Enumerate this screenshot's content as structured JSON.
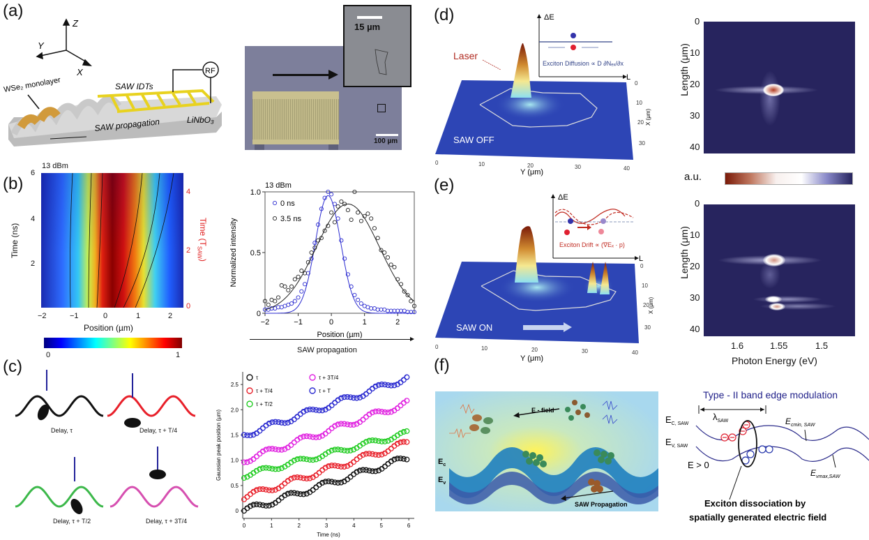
{
  "panels": {
    "a": {
      "label": "(a)",
      "axes": {
        "z": "Z",
        "y": "Y",
        "x": "X"
      },
      "monolayer": "WSe₂ monolayer",
      "idts": "SAW IDTs",
      "rf": "RF",
      "substrate": "LiNbO₃",
      "propagation": "SAW propagation",
      "micro_scale_inset": "15 µm",
      "micro_scale_main": "100 µm"
    },
    "b": {
      "label": "(b)",
      "heatmap": {
        "power": "13 dBm",
        "ylabel": "Time (ns)",
        "ylabel_right": "Time (T",
        "ylabel_right_sub": "SAW",
        "ylabel_right_end": ")",
        "xlabel": "Position (µm)",
        "xticks": [
          "−2",
          "−1",
          "0",
          "1",
          "2"
        ],
        "yticks": [
          "2",
          "4",
          "6"
        ],
        "yticks_right": [
          "0",
          "2",
          "4"
        ],
        "colorbar_min": "0",
        "colorbar_max": "1"
      },
      "profile_footer": "SAW propagation"
    },
    "c": {
      "label": "(c)",
      "delays": [
        "Delay, τ",
        "Delay, τ + T/4",
        "Delay, τ + T/2",
        "Delay, τ + 3T/4"
      ],
      "wave_colors": [
        "#111111",
        "#e8202a",
        "#3cb84a",
        "#d64fb0"
      ]
    },
    "d": {
      "label": "(d)",
      "laser": "Laser",
      "state": "SAW OFF",
      "inset_y": "ΔE",
      "inset_x": "L",
      "inset_caption": "Exciton Diffusion ∝ D ∂Nₑₓ/∂x",
      "x_axis": "Y (μm)",
      "y_axis": "X (μm)",
      "xticks": [
        "0",
        "10",
        "20",
        "30",
        "40"
      ],
      "yticks": [
        "0",
        "10",
        "20",
        "30"
      ]
    },
    "e": {
      "label": "(e)",
      "state": "SAW ON",
      "inset_y": "ΔE",
      "inset_x": "L",
      "inset_caption": "Exciton Drift ∝ (∇Eₓ · p)",
      "x_axis": "Y (μm)",
      "y_axis": "X (μm)",
      "xticks": [
        "0",
        "10",
        "20",
        "30",
        "40"
      ],
      "yticks": [
        "0",
        "10",
        "20",
        "30"
      ]
    },
    "spectra": {
      "ylabel": "Length (μm)",
      "yticks": [
        "0",
        "10",
        "20",
        "30",
        "40"
      ],
      "xlabel": "Photon Energy (eV)",
      "xticks": [
        "1.6",
        "1.55",
        "1.5"
      ],
      "colorbar_label": "a.u."
    },
    "f": {
      "label": "(f)",
      "efield": "E - field",
      "ec": "E",
      "ec_sub": "c",
      "ev": "E",
      "ev_sub": "v",
      "propagation": "SAW Propagation",
      "band_title": "Type - II band edge modulation",
      "lambda": "λ",
      "lambda_sub": "SAW",
      "ec_saw": "E",
      "ec_saw_sub": "C, SAW",
      "ev_saw": "E",
      "ev_saw_sub": "V, SAW",
      "e_pos": "E > 0",
      "ecmin": "E",
      "ecmin_sub": "cmin, SAW",
      "evmax": "E",
      "evmax_sub": "vmax,SAW",
      "caption_line1": "Exciton dissociation by",
      "caption_line2": "spatially generated  electric field"
    }
  },
  "chart_data": [
    {
      "type": "line",
      "id": "normalized-intensity",
      "title": "13 dBm",
      "xlabel": "Position (µm)",
      "ylabel": "Normalized intensity",
      "xlim": [
        -2,
        2.5
      ],
      "ylim": [
        0,
        1.0
      ],
      "xticks": [
        -2,
        -1,
        0,
        1,
        2
      ],
      "yticks": [
        0,
        0.5,
        1.0
      ],
      "ytick_labels": [
        "0",
        "0.5",
        "1.0"
      ],
      "legend_position": "top-left",
      "series": [
        {
          "name": "0 ns",
          "color": "#2a2ad0",
          "fit": {
            "center": -0.1,
            "sigma": 0.38,
            "amp": 0.97
          },
          "points_x": [
            -2,
            -1.9,
            -1.8,
            -1.7,
            -1.6,
            -1.5,
            -1.4,
            -1.3,
            -1.2,
            -1.1,
            -1.0,
            -0.9,
            -0.8,
            -0.7,
            -0.6,
            -0.5,
            -0.4,
            -0.3,
            -0.2,
            -0.1,
            0,
            0.1,
            0.2,
            0.3,
            0.4,
            0.5,
            0.6,
            0.7,
            0.8,
            0.9,
            1.0,
            1.1,
            1.2,
            1.3,
            1.4,
            1.5,
            1.6,
            1.7,
            1.8,
            1.9,
            2.0,
            2.1,
            2.2,
            2.3,
            2.4,
            2.5
          ],
          "points_y": [
            0.03,
            0.03,
            0.04,
            0.04,
            0.05,
            0.05,
            0.06,
            0.07,
            0.08,
            0.1,
            0.13,
            0.18,
            0.24,
            0.33,
            0.45,
            0.58,
            0.73,
            0.86,
            0.95,
            1.0,
            0.98,
            0.9,
            0.78,
            0.6,
            0.45,
            0.32,
            0.22,
            0.15,
            0.11,
            0.08,
            0.06,
            0.05,
            0.04,
            0.04,
            0.03,
            0.03,
            0.03,
            0.02,
            0.02,
            0.02,
            0.02,
            0.02,
            0.02,
            0.01,
            0.01,
            0.01
          ]
        },
        {
          "name": "3.5 ns",
          "color": "#222222",
          "fit": {
            "center": 0.5,
            "sigma": 0.95,
            "amp": 0.9
          },
          "points_x": [
            -2,
            -1.9,
            -1.8,
            -1.7,
            -1.6,
            -1.5,
            -1.4,
            -1.3,
            -1.2,
            -1.1,
            -1.0,
            -0.9,
            -0.8,
            -0.7,
            -0.6,
            -0.5,
            -0.4,
            -0.3,
            -0.2,
            -0.1,
            0,
            0.1,
            0.2,
            0.3,
            0.4,
            0.5,
            0.6,
            0.7,
            0.8,
            0.9,
            1.0,
            1.1,
            1.2,
            1.3,
            1.4,
            1.5,
            1.6,
            1.7,
            1.8,
            1.9,
            2.0,
            2.1,
            2.2,
            2.3,
            2.4,
            2.5
          ],
          "points_y": [
            0.1,
            0.07,
            0.11,
            0.1,
            0.13,
            0.23,
            0.22,
            0.19,
            0.22,
            0.28,
            0.3,
            0.35,
            0.33,
            0.42,
            0.5,
            0.54,
            0.6,
            0.62,
            0.68,
            0.72,
            0.83,
            0.75,
            0.88,
            0.92,
            0.9,
            0.85,
            0.77,
            1.0,
            0.83,
            0.76,
            0.8,
            0.82,
            0.78,
            0.7,
            0.62,
            0.52,
            0.5,
            0.46,
            0.4,
            0.38,
            0.28,
            0.24,
            0.18,
            0.15,
            0.1,
            0.06
          ]
        }
      ]
    },
    {
      "type": "scatter",
      "id": "gaussian-peak-position",
      "xlabel": "Time (ns)",
      "ylabel": "Gaussian peak position (µm)",
      "xlim": [
        0,
        6
      ],
      "ylim": [
        -0.15,
        2.75
      ],
      "xticks": [
        0,
        1,
        2,
        3,
        4,
        5,
        6
      ],
      "yticks": [
        0,
        0.5,
        1.0,
        1.5,
        2.0,
        2.5
      ],
      "ytick_labels": [
        "0",
        "0.5",
        "1.0",
        "1.5",
        "2.0",
        "2.5"
      ],
      "legend_position": "top-left",
      "series": [
        {
          "name": "τ",
          "color": "#111111",
          "offset": 0.0,
          "slope": 0.175,
          "amp": 0.06,
          "phase": 0.0
        },
        {
          "name": "τ + T/4",
          "color": "#e8202a",
          "offset": 0.27,
          "slope": 0.18,
          "amp": 0.06,
          "phase": 0.8
        },
        {
          "name": "τ + T/2",
          "color": "#22cc22",
          "offset": 0.7,
          "slope": 0.14,
          "amp": 0.05,
          "phase": 1.6
        },
        {
          "name": "τ + 3T/4",
          "color": "#e020e0",
          "offset": 1.0,
          "slope": 0.19,
          "amp": 0.06,
          "phase": 2.4
        },
        {
          "name": "τ + T",
          "color": "#2a2ad0",
          "offset": 1.5,
          "slope": 0.19,
          "amp": 0.06,
          "phase": 3.2
        }
      ],
      "period_ns": 1.3
    }
  ]
}
